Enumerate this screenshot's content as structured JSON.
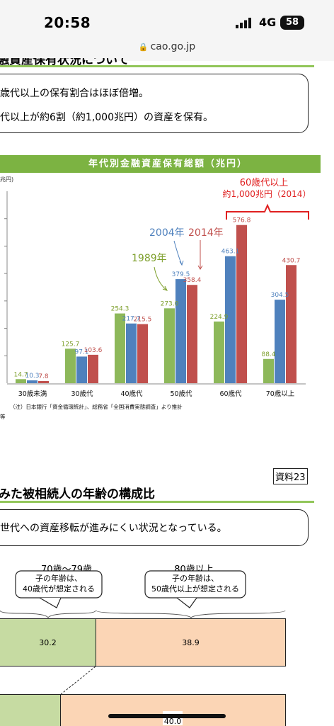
{
  "status_bar": {
    "time": "20:58",
    "network": "4G",
    "battery": "58"
  },
  "browser": {
    "url": "cao.go.jp"
  },
  "top_section": {
    "heading_fragment": "融資産保有状況について",
    "bullet1": "歳代以上の保有割合はほぼ倍増。",
    "bullet2": "代以上が約6割（約1,000兆円）の資産を保有。"
  },
  "chart_data": {
    "type": "bar",
    "title": "年代別金融資産保有総額（兆円）",
    "ylabel": "兆円)",
    "categories": [
      "30歳未満",
      "30歳代",
      "40歳代",
      "50歳代",
      "60歳代",
      "70歳以上"
    ],
    "ylim": [
      0,
      700
    ],
    "series": [
      {
        "name": "1989年",
        "color": "#8db85a",
        "values": [
          14.7,
          125.7,
          254.3,
          273.0,
          224.9,
          88.4
        ]
      },
      {
        "name": "2004年",
        "color": "#4f81bd",
        "values": [
          10.3,
          97.1,
          217.7,
          379.5,
          463.1,
          304.5
        ]
      },
      {
        "name": "2014年",
        "color": "#c0504d",
        "values": [
          7.8,
          103.6,
          215.5,
          358.4,
          576.8,
          430.7
        ]
      }
    ],
    "value_labels": [
      [
        "14.7",
        "125.7",
        "254.3",
        "273.0",
        "224.9",
        "88.4"
      ],
      [
        "10.3",
        "97.1",
        "217.7",
        "379.5",
        "463.1",
        "304.5"
      ],
      [
        "7.8",
        "103.6",
        "215.5",
        "358.4",
        "576.8",
        "430.7"
      ]
    ],
    "callout_line1": "60歳代以上",
    "callout_line2": "約1,000兆円（2014）",
    "note": "（注）日本銀行「資金循環統計」、総務省「全国消費実態調査」より推計",
    "note2": "等",
    "grid": false
  },
  "bottom_section": {
    "badge": "資料23",
    "heading_fragment": "みた被相続人の年齢の構成比",
    "summary": "世代への資産移転が進みにくい状況となっている。",
    "group1_label": "70歳～79歳",
    "group1_note_line1": "子の年齢は、",
    "group1_note_line2": "40歳代が想定される",
    "group2_label": "80歳以上",
    "group2_note_line1": "子の年齢は、",
    "group2_note_line2": "50歳代以上が想定される",
    "row1_values": [
      "30.2",
      "38.9"
    ],
    "row2_value_partial": "40.0",
    "colors": {
      "green": "#c6dba2",
      "peach": "#fbd5b5"
    }
  }
}
